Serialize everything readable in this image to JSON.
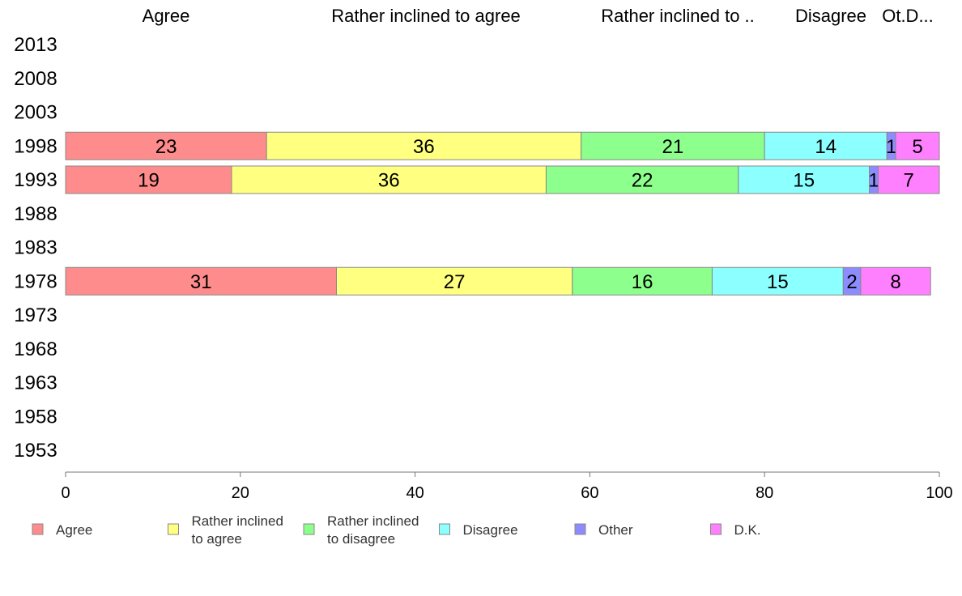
{
  "chart_data": {
    "type": "bar",
    "orientation": "horizontal",
    "stacked": true,
    "column_headers": [
      "Agree",
      "Rather inclined to agree",
      "Rather inclined to ..",
      "Disagree",
      "Ot.D..."
    ],
    "categories": [
      "2013",
      "2008",
      "2003",
      "1998",
      "1993",
      "1988",
      "1983",
      "1978",
      "1973",
      "1968",
      "1963",
      "1958",
      "1953"
    ],
    "xlim": [
      0,
      100
    ],
    "xticks": [
      "0",
      "20",
      "40",
      "60",
      "80",
      "100"
    ],
    "grid": false,
    "legend_position": "bottom",
    "series": [
      {
        "name": "Agree",
        "legend_lines": [
          "Agree"
        ],
        "color": "#ff8c8c",
        "values": [
          null,
          null,
          null,
          23,
          19,
          null,
          null,
          31,
          null,
          null,
          null,
          null,
          null
        ]
      },
      {
        "name": "Rather inclined to agree",
        "legend_lines": [
          "Rather inclined",
          "to agree"
        ],
        "color": "#ffff80",
        "values": [
          null,
          null,
          null,
          36,
          36,
          null,
          null,
          27,
          null,
          null,
          null,
          null,
          null
        ]
      },
      {
        "name": "Rather inclined to disagree",
        "legend_lines": [
          "Rather inclined",
          "to disagree"
        ],
        "color": "#8cff8c",
        "values": [
          null,
          null,
          null,
          21,
          22,
          null,
          null,
          16,
          null,
          null,
          null,
          null,
          null
        ]
      },
      {
        "name": "Disagree",
        "legend_lines": [
          "Disagree"
        ],
        "color": "#8cffff",
        "values": [
          null,
          null,
          null,
          14,
          15,
          null,
          null,
          15,
          null,
          null,
          null,
          null,
          null
        ]
      },
      {
        "name": "Other",
        "legend_lines": [
          "Other"
        ],
        "color": "#8c8cff",
        "values": [
          null,
          null,
          null,
          1,
          1,
          null,
          null,
          2,
          null,
          null,
          null,
          null,
          null
        ]
      },
      {
        "name": "D.K.",
        "legend_lines": [
          "D.K."
        ],
        "color": "#ff80ff",
        "values": [
          null,
          null,
          null,
          5,
          7,
          null,
          null,
          8,
          null,
          null,
          null,
          null,
          null
        ]
      }
    ]
  }
}
